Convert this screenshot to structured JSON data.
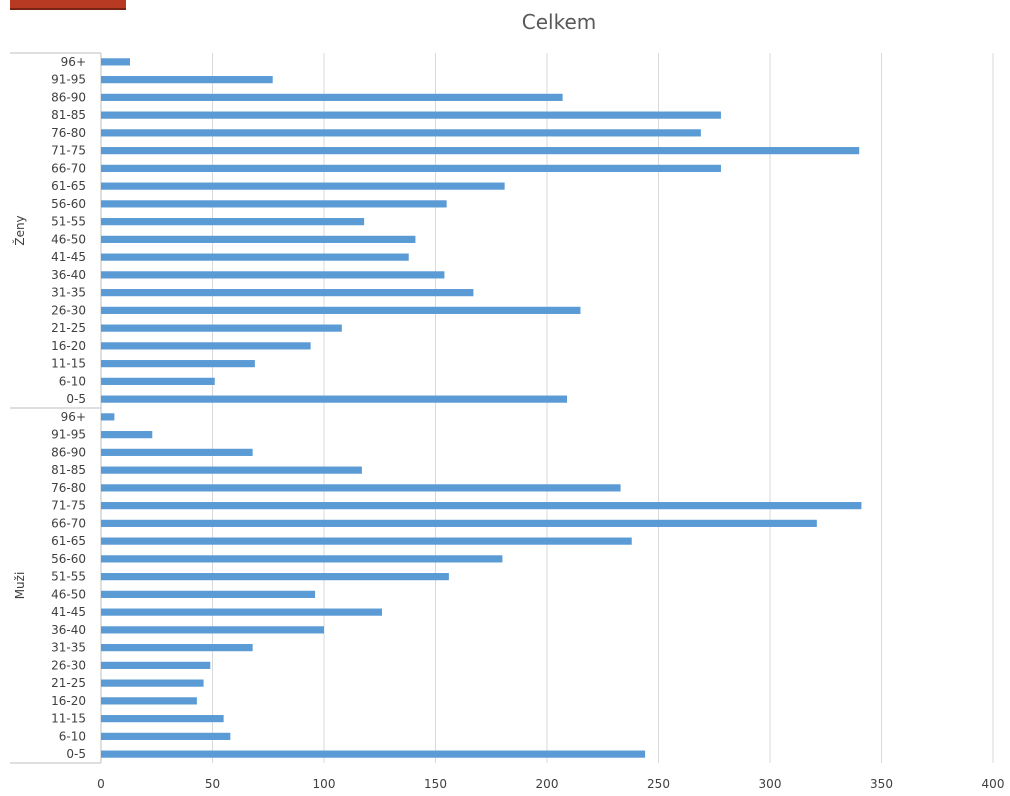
{
  "chart_data": {
    "type": "bar",
    "orientation": "horizontal",
    "title": "Celkem",
    "xlim": [
      0,
      400
    ],
    "x_ticks": [
      "0",
      "50",
      "100",
      "150",
      "200",
      "250",
      "300",
      "350",
      "400"
    ],
    "grid": "vertical",
    "bar_color": "#5b9bd5",
    "groups": [
      {
        "name": "Ženy",
        "categories": [
          "96+",
          "91-95",
          "86-90",
          "81-85",
          "76-80",
          "71-75",
          "66-70",
          "61-65",
          "56-60",
          "51-55",
          "46-50",
          "41-45",
          "36-40",
          "31-35",
          "26-30",
          "21-25",
          "16-20",
          "11-15",
          "6-10",
          "0-5"
        ],
        "values": [
          13,
          77,
          207,
          278,
          269,
          340,
          278,
          181,
          155,
          118,
          141,
          138,
          154,
          167,
          215,
          108,
          94,
          69,
          51,
          209
        ]
      },
      {
        "name": "Muži",
        "categories": [
          "96+",
          "91-95",
          "86-90",
          "81-85",
          "76-80",
          "71-75",
          "66-70",
          "61-65",
          "56-60",
          "51-55",
          "46-50",
          "41-45",
          "36-40",
          "31-35",
          "26-30",
          "21-25",
          "16-20",
          "11-15",
          "6-10",
          "0-5"
        ],
        "values": [
          6,
          23,
          68,
          117,
          233,
          341,
          321,
          238,
          180,
          156,
          96,
          126,
          100,
          68,
          49,
          46,
          43,
          55,
          58,
          244
        ]
      }
    ]
  }
}
